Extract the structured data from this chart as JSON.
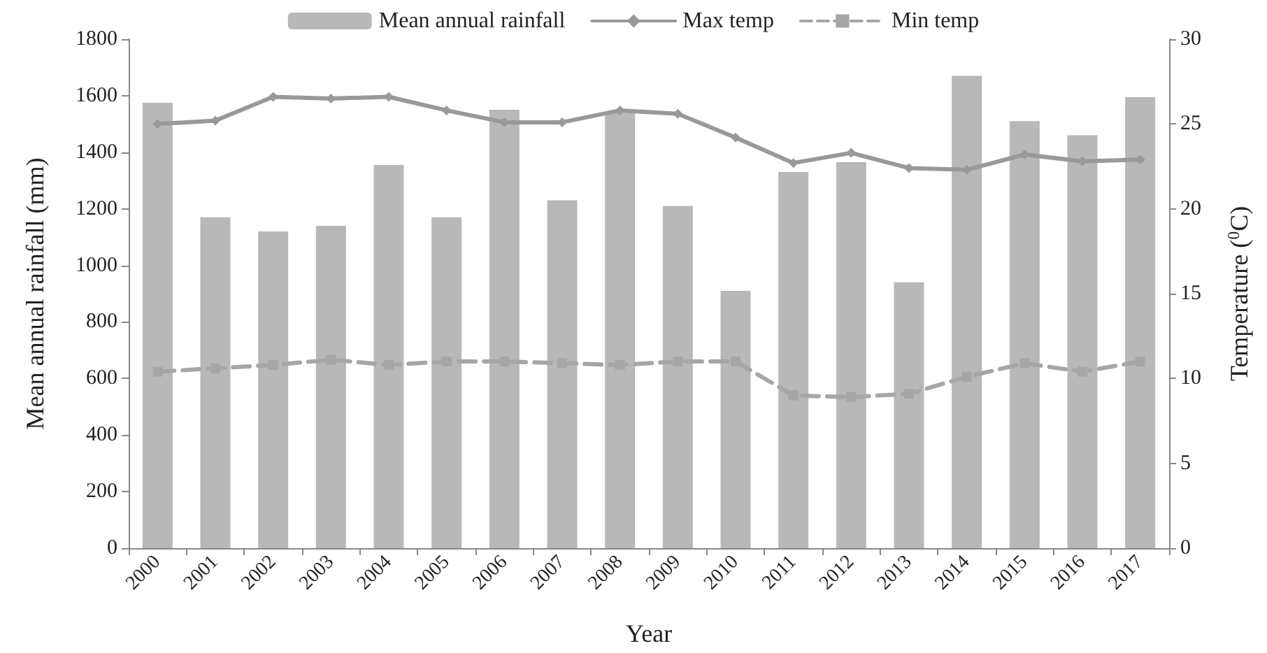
{
  "chart_data": {
    "type": "bar",
    "xlabel": "Year",
    "ylabel": "Mean annual rainfall (mm)",
    "y2label": "Temperature ($^{0}$C)",
    "categories": [
      "2000",
      "2001",
      "2002",
      "2003",
      "2004",
      "2005",
      "2006",
      "2007",
      "2008",
      "2009",
      "2010",
      "2011",
      "2012",
      "2013",
      "2014",
      "2015",
      "2016",
      "2017"
    ],
    "series": [
      {
        "name": "Mean annual rainfall",
        "color": "#b8b8b8",
        "values": [
          1575,
          1170,
          1120,
          1140,
          1355,
          1170,
          1550,
          1230,
          1540,
          1210,
          910,
          1330,
          1365,
          940,
          1670,
          1510,
          1460,
          1595
        ]
      },
      {
        "name": "Max temp",
        "type": "line",
        "axis": "y2",
        "color": "#999999",
        "marker": "diamond",
        "line_style": "solid",
        "values": [
          25.0,
          25.2,
          26.6,
          26.5,
          26.6,
          25.8,
          25.1,
          25.1,
          25.8,
          25.6,
          24.2,
          22.7,
          23.3,
          22.4,
          22.3,
          23.2,
          22.8,
          22.9
        ]
      },
      {
        "name": "Min temp",
        "type": "line",
        "axis": "y2",
        "color": "#a6a6a6",
        "marker": "square",
        "line_style": "dashed",
        "values": [
          10.4,
          10.6,
          10.8,
          11.1,
          10.8,
          11.0,
          11.0,
          10.9,
          10.8,
          11.0,
          11.0,
          9.0,
          8.9,
          9.1,
          10.1,
          10.9,
          10.4,
          11.0
        ]
      }
    ],
    "ylim": [
      0,
      1800
    ],
    "yticks": [
      0,
      200,
      400,
      600,
      800,
      1000,
      1200,
      1400,
      1600,
      1800
    ],
    "y2lim": [
      0,
      30
    ],
    "y2ticks": [
      0,
      5,
      10,
      15,
      20,
      25,
      30
    ],
    "grid": false,
    "legend": "top"
  }
}
